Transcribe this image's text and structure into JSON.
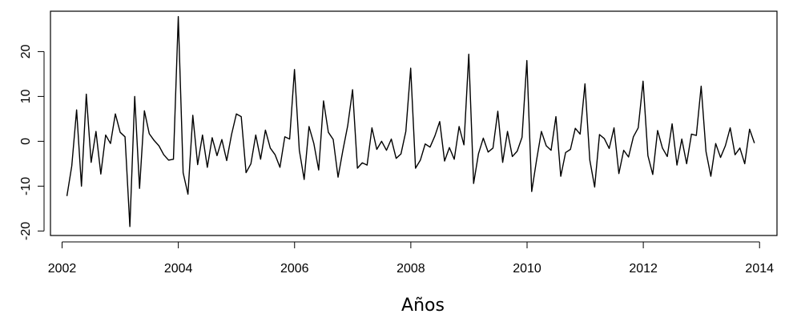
{
  "chart_data": {
    "type": "line",
    "title": "",
    "xlabel": "Años",
    "ylabel": "",
    "xlim": [
      2001.8,
      2014.3
    ],
    "ylim": [
      -21,
      29
    ],
    "grid": false,
    "legend": "none",
    "line_color": "#000000",
    "x_ticks": [
      2002,
      2004,
      2006,
      2008,
      2010,
      2012,
      2014
    ],
    "x_tick_labels": [
      "2002",
      "2004",
      "2006",
      "2008",
      "2010",
      "2012",
      "2014"
    ],
    "y_ticks": [
      -20,
      -10,
      0,
      10,
      20
    ],
    "y_tick_labels": [
      "-20",
      "-10",
      "0",
      "10",
      "20"
    ],
    "series": [
      {
        "x_start": 2002.0833,
        "x_step": 0.0833,
        "values": [
          -12.2,
          -5.5,
          7.0,
          -10.0,
          10.5,
          -4.7,
          2.2,
          -7.3,
          1.4,
          -0.5,
          6.1,
          2.0,
          1.0,
          -19.0,
          10.0,
          -10.5,
          6.8,
          1.7,
          0.2,
          -1.0,
          -3.0,
          -4.2,
          -4.0,
          27.8,
          -7.0,
          -11.8,
          5.8,
          -5.2,
          1.4,
          -5.8,
          0.8,
          -3.2,
          0.4,
          -4.3,
          1.5,
          6.1,
          5.5,
          -7.0,
          -5.0,
          1.4,
          -4.0,
          2.5,
          -1.5,
          -3.0,
          -5.8,
          1.0,
          0.5,
          16.0,
          -2.0,
          -8.5,
          3.3,
          -0.5,
          -6.4,
          9.0,
          2.0,
          0.4,
          -8.0,
          -2.0,
          3.5,
          11.5,
          -6.0,
          -4.8,
          -5.3,
          3.0,
          -1.8,
          0.0,
          -2.0,
          0.5,
          -3.8,
          -2.8,
          2.2,
          16.3,
          -6.0,
          -4.2,
          -0.6,
          -1.3,
          1.2,
          4.4,
          -4.4,
          -1.4,
          -4.0,
          3.3,
          -0.8,
          19.4,
          -9.4,
          -2.8,
          0.7,
          -2.4,
          -1.5,
          6.7,
          -4.7,
          2.2,
          -3.4,
          -2.2,
          0.9,
          18.0,
          -11.2,
          -4.2,
          2.2,
          -1.0,
          -2.0,
          5.5,
          -7.8,
          -2.5,
          -1.8,
          2.9,
          1.6,
          12.8,
          -4.2,
          -10.2,
          1.5,
          0.6,
          -1.6,
          3.0,
          -7.2,
          -2.0,
          -3.5,
          1.0,
          3.0,
          13.4,
          -3.2,
          -7.4,
          2.4,
          -1.5,
          -3.4,
          3.9,
          -5.3,
          0.5,
          -5.0,
          1.6,
          1.3,
          12.3,
          -2.3,
          -7.8,
          -0.5,
          -3.6,
          -1.0,
          3.0,
          -3.0,
          -1.5,
          -5.0,
          2.7,
          -0.4
        ]
      }
    ]
  }
}
